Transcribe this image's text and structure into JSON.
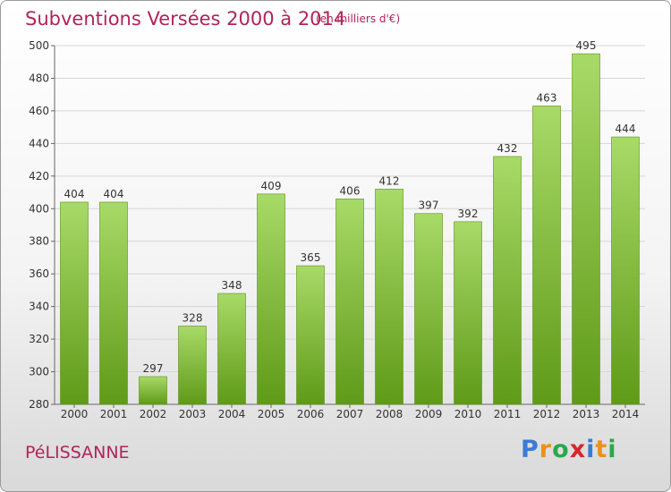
{
  "title": "Subventions Versées 2000 à 2014",
  "unit_note": "(en milliers d'€)",
  "commune": "PéLISSANNE",
  "brand": {
    "letters": [
      "P",
      "r",
      "o",
      "x",
      "i",
      "t",
      "i"
    ],
    "colors": [
      "#3a7bd5",
      "#e8931c",
      "#2aa84a",
      "#d8262a",
      "#3a7bd5",
      "#e8931c",
      "#2aa84a"
    ]
  },
  "colors": {
    "bar_light": "#a8da68",
    "bar_dark": "#5f9a18",
    "title": "#b0245a"
  },
  "chart_data": {
    "type": "bar",
    "title": "Subventions Versées 2000 à 2014",
    "categories": [
      "2000",
      "2001",
      "2002",
      "2003",
      "2004",
      "2005",
      "2006",
      "2007",
      "2008",
      "2009",
      "2010",
      "2011",
      "2012",
      "2013",
      "2014"
    ],
    "values": [
      404,
      404,
      297,
      328,
      348,
      409,
      365,
      406,
      412,
      397,
      392,
      432,
      463,
      495,
      444
    ],
    "ylim": [
      280,
      500
    ],
    "yticks": [
      280,
      300,
      320,
      340,
      360,
      380,
      400,
      420,
      440,
      460,
      480,
      500
    ],
    "grid": true,
    "xlabel": "",
    "ylabel": ""
  }
}
